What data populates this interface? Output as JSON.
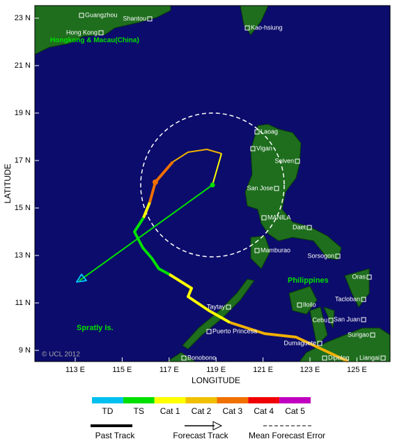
{
  "map": {
    "x_axis_label": "LONGITUDE",
    "y_axis_label": "LATITUDE",
    "lat_ticks": [
      "23 N",
      "21 N",
      "19 N",
      "17 N",
      "15 N",
      "13 N",
      "11 N",
      "9 N"
    ],
    "lon_ticks": [
      "113 E",
      "115 E",
      "117 E",
      "119 E",
      "121 E",
      "123 E",
      "125 E"
    ],
    "places": [
      "Guangzhou",
      "Shantou",
      "Hong Kong",
      "Kao-hsiung",
      "Laoag",
      "Vigan",
      "Solven",
      "San Jose",
      "MANILA",
      "Daet",
      "Mamburao",
      "Sorsogon",
      "Oras",
      "Tacloban",
      "Iloilo",
      "Cebu",
      "San Juan",
      "Taytay",
      "Surigao",
      "Puerto Princesa",
      "Dumaguete",
      "Dipolog",
      "Liangai",
      "Bonobono"
    ],
    "regions": [
      "Hongkong & Macau(China)",
      "Philippines",
      "Spratly Is."
    ],
    "copyright": "© UCL 2012"
  },
  "legend": {
    "intensity": [
      "TD",
      "TS",
      "Cat 1",
      "Cat 2",
      "Cat 3",
      "Cat 4",
      "Cat 5"
    ],
    "tracks": [
      "Past Track",
      "Forecast Track",
      "Mean Forecast Error"
    ]
  }
}
